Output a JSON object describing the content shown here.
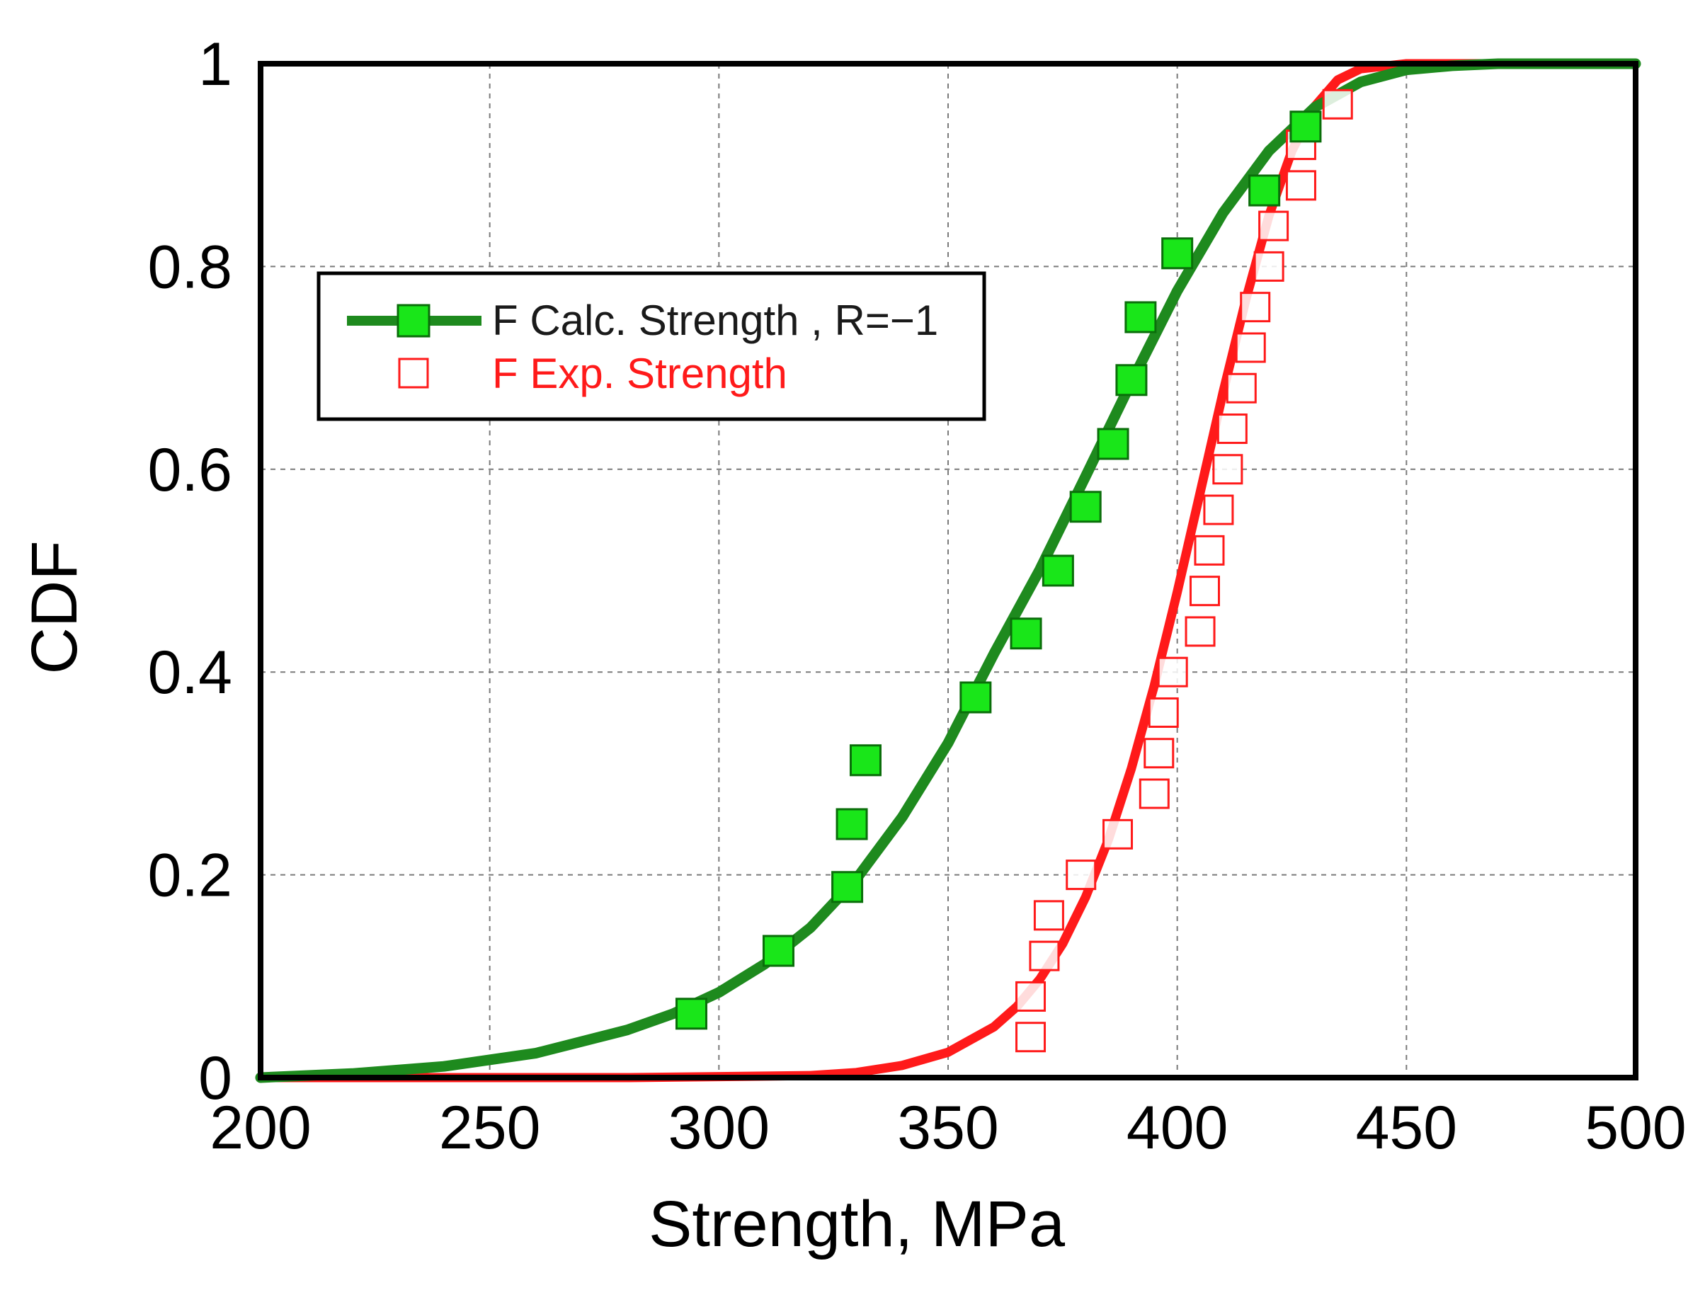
{
  "chart_data": {
    "type": "line",
    "title": "",
    "xlabel": "Strength, MPa",
    "ylabel": "CDF",
    "xlim": [
      200,
      500
    ],
    "ylim": [
      0,
      1
    ],
    "xticks": [
      200,
      250,
      300,
      350,
      400,
      450,
      500
    ],
    "xtick_labels": [
      "200",
      "250",
      "300",
      "350",
      "400",
      "450",
      "500"
    ],
    "yticks": [
      0,
      0.2,
      0.4,
      0.6,
      0.8,
      1
    ],
    "ytick_labels": [
      "0",
      "0.2",
      "0.4",
      "0.6",
      "0.8",
      "1"
    ],
    "grid": true,
    "legend_position": "upper-left",
    "colors": {
      "calc_line": "#1e8a1e",
      "calc_marker_fill": "#19e619",
      "calc_marker_stroke": "#0a6e0a",
      "exp": "#ff1a1a",
      "grid": "#7a7a7a",
      "axis": "#000000"
    },
    "series": [
      {
        "name": "F Calc. Strength , R=−1",
        "style": "line+filled-square",
        "curve": {
          "x": [
            200,
            220,
            240,
            260,
            280,
            290,
            300,
            310,
            320,
            330,
            340,
            350,
            360,
            370,
            380,
            390,
            400,
            410,
            420,
            430,
            440,
            450,
            460,
            470,
            480,
            490,
            500
          ],
          "y": [
            0.0,
            0.004,
            0.011,
            0.024,
            0.047,
            0.063,
            0.084,
            0.112,
            0.148,
            0.196,
            0.257,
            0.33,
            0.418,
            0.501,
            0.593,
            0.686,
            0.776,
            0.853,
            0.914,
            0.957,
            0.982,
            0.994,
            0.998,
            1.0,
            1.0,
            1.0,
            1.0
          ]
        },
        "points": {
          "x": [
            294,
            313,
            328,
            329,
            332,
            356,
            367,
            374,
            380,
            386,
            390,
            392,
            400,
            419,
            428
          ],
          "y": [
            0.063,
            0.125,
            0.188,
            0.25,
            0.313,
            0.375,
            0.438,
            0.5,
            0.563,
            0.625,
            0.688,
            0.75,
            0.813,
            0.875,
            0.938
          ]
        }
      },
      {
        "name": "F Exp. Strength",
        "style": "line+open-square",
        "curve": {
          "x": [
            200,
            280,
            300,
            320,
            330,
            340,
            350,
            360,
            365,
            370,
            375,
            380,
            385,
            390,
            395,
            400,
            405,
            410,
            415,
            420,
            425,
            430,
            435,
            440,
            450,
            460,
            480,
            500
          ],
          "y": [
            0.0,
            0.0,
            0.001,
            0.002,
            0.005,
            0.012,
            0.025,
            0.05,
            0.07,
            0.097,
            0.132,
            0.178,
            0.235,
            0.305,
            0.387,
            0.479,
            0.577,
            0.676,
            0.768,
            0.85,
            0.914,
            0.958,
            0.984,
            0.995,
            1.0,
            1.0,
            1.0,
            1.0
          ]
        },
        "points": {
          "x": [
            368,
            368,
            371,
            372,
            379,
            387,
            395,
            396,
            397,
            399,
            405,
            406,
            407,
            409,
            411,
            412,
            414,
            416,
            417,
            420,
            421,
            427,
            427,
            435
          ],
          "y": [
            0.04,
            0.08,
            0.12,
            0.16,
            0.2,
            0.24,
            0.28,
            0.32,
            0.36,
            0.4,
            0.44,
            0.48,
            0.52,
            0.56,
            0.6,
            0.64,
            0.68,
            0.72,
            0.76,
            0.8,
            0.84,
            0.88,
            0.92,
            0.96
          ]
        }
      }
    ]
  }
}
